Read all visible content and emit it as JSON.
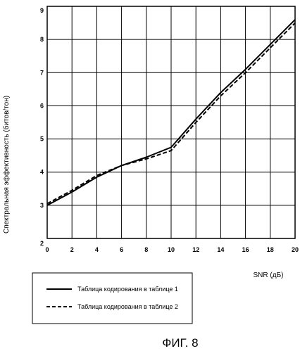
{
  "chart_data": {
    "type": "line",
    "xlabel": "SNR (дБ)",
    "ylabel": "Спектральная эффективность (битов/тон)",
    "xlim": [
      0,
      20
    ],
    "ylim": [
      2,
      9
    ],
    "x_ticks": [
      "0",
      "2",
      "4",
      "6",
      "8",
      "10",
      "12",
      "14",
      "16",
      "18",
      "20"
    ],
    "y_ticks": [
      "2",
      "3",
      "4",
      "5",
      "6",
      "7",
      "8",
      "9"
    ],
    "grid": true,
    "legend_position": "below",
    "series": [
      {
        "name": "Таблица кодирования в таблице 1",
        "style": "solid",
        "color": "#000000",
        "x": [
          0,
          2,
          4,
          6,
          8,
          10,
          12,
          14,
          16,
          18,
          20
        ],
        "y": [
          3.0,
          3.4,
          3.85,
          4.2,
          4.45,
          4.75,
          5.6,
          6.4,
          7.1,
          7.85,
          8.6
        ]
      },
      {
        "name": "Таблица кодирования в таблице 2",
        "style": "dashed",
        "color": "#000000",
        "x": [
          0,
          2,
          4,
          6,
          8,
          10,
          12,
          14,
          16,
          18,
          20
        ],
        "y": [
          3.05,
          3.45,
          3.9,
          4.2,
          4.4,
          4.65,
          5.5,
          6.3,
          7.0,
          7.75,
          8.5
        ]
      }
    ]
  },
  "figure_caption": "ФИГ. 8"
}
